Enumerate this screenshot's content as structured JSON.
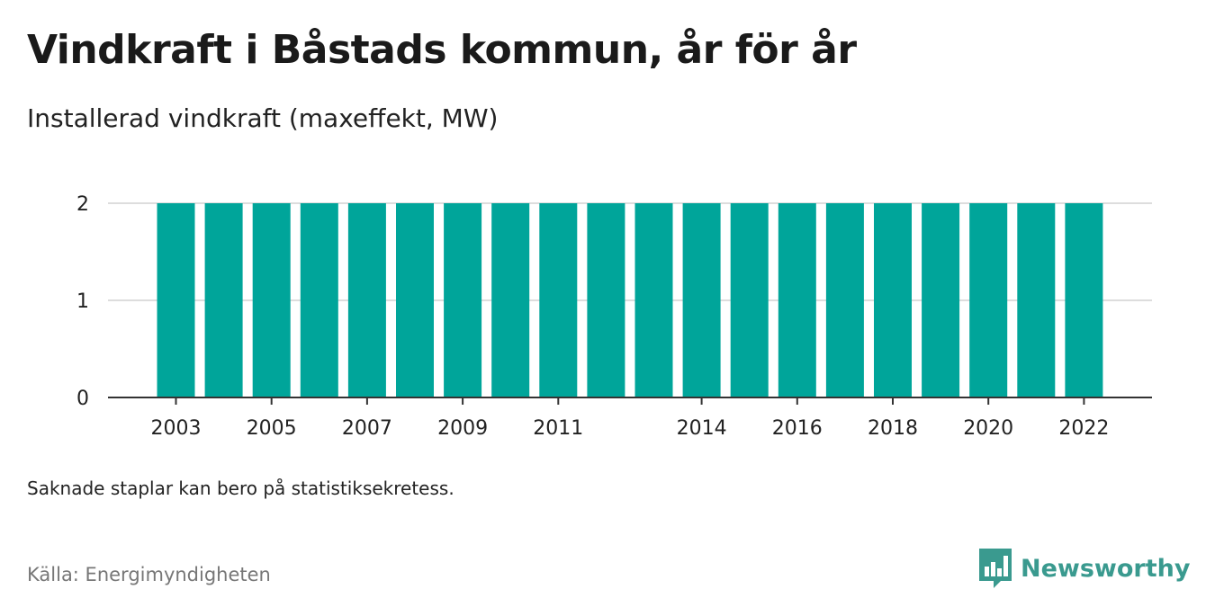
{
  "title": "Vindkraft i Båstads kommun, år för år",
  "subtitle": "Installerad vindkraft (maxeffekt, MW)",
  "note": "Saknade staplar kan bero på statistiksekretess.",
  "source": "Källa: Energimyndigheten",
  "brand": {
    "name": "Newsworthy",
    "icon": "newsworthy-logo-icon",
    "color": "#3a9a8f"
  },
  "chart_data": {
    "type": "bar",
    "categories": [
      "2003",
      "2004",
      "2005",
      "2006",
      "2007",
      "2008",
      "2009",
      "2010",
      "2011",
      "2012",
      "2013",
      "2014",
      "2015",
      "2016",
      "2017",
      "2018",
      "2019",
      "2020",
      "2021",
      "2022"
    ],
    "values": [
      2,
      2,
      2,
      2,
      2,
      2,
      2,
      2,
      2,
      2,
      2,
      2,
      2,
      2,
      2,
      2,
      2,
      2,
      2,
      2
    ],
    "x_tick_labels": [
      "2003",
      "2005",
      "2007",
      "2009",
      "2011",
      "2014",
      "2016",
      "2018",
      "2020",
      "2022"
    ],
    "y_ticks": [
      0,
      1,
      2
    ],
    "ylim": [
      0,
      2
    ],
    "bar_color": "#00a59a",
    "grid": true,
    "xlabel": "",
    "ylabel": ""
  }
}
